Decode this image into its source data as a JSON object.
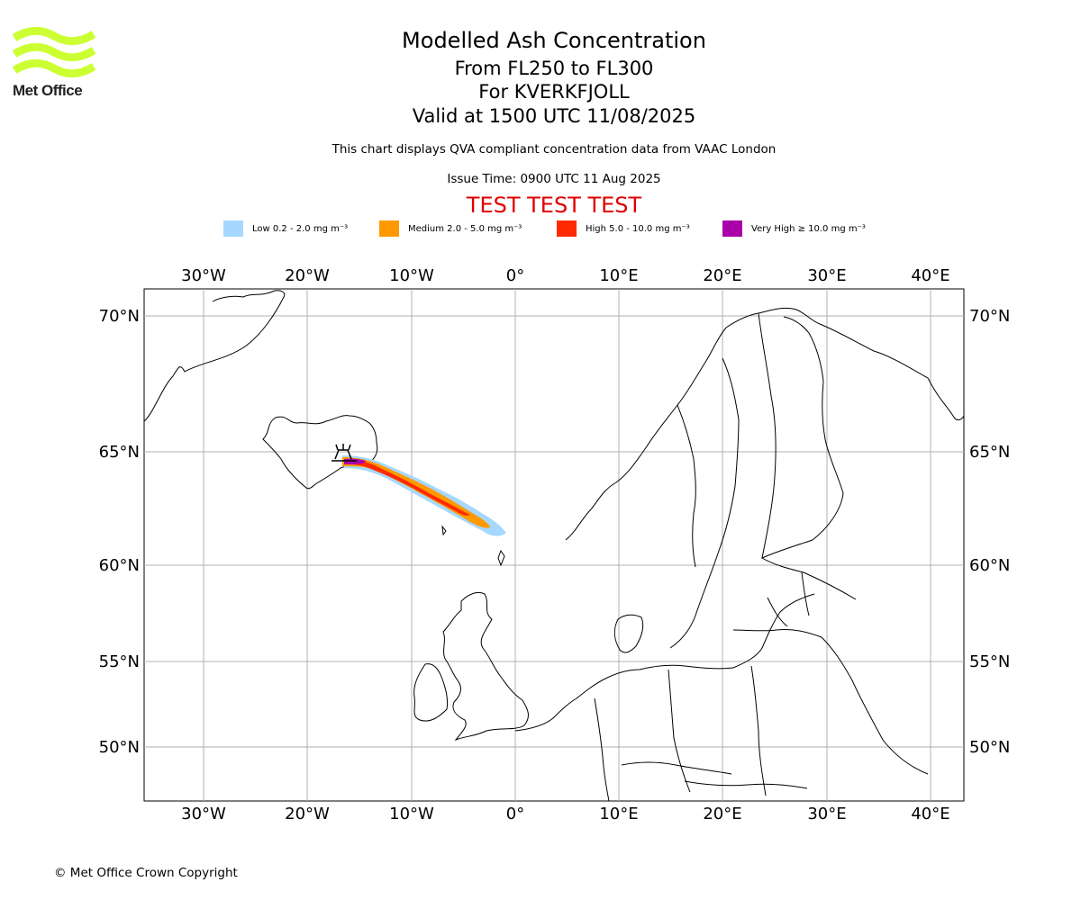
{
  "logo": {
    "text": "Met Office",
    "color": "#ccff33"
  },
  "title": {
    "main": "Modelled Ash Concentration",
    "levels": "From FL250 to FL300",
    "volcano": "For KVERKFJOLL",
    "valid": "Valid at 1500 UTC 11/08/2025"
  },
  "subtitle": "This chart displays QVA compliant concentration data from VAAC London",
  "issue_time": "Issue Time: 0900 UTC 11 Aug 2025",
  "test_banner": "TEST TEST TEST",
  "legend": [
    {
      "label": "Low 0.2 - 2.0 mg m⁻³",
      "color": "#a6d8ff"
    },
    {
      "label": "Medium 2.0 - 5.0 mg m⁻³",
      "color": "#ff9900"
    },
    {
      "label": "High 5.0 - 10.0 mg m⁻³",
      "color": "#ff2a00"
    },
    {
      "label": "Very High  ≥  10.0 mg m⁻³",
      "color": "#aa00aa"
    }
  ],
  "map": {
    "lon_labels": [
      "30°W",
      "20°W",
      "10°W",
      "0°",
      "10°E",
      "20°E",
      "30°E",
      "40°E"
    ],
    "lat_labels": [
      "70°N",
      "65°N",
      "60°N",
      "55°N",
      "50°N"
    ],
    "colors": {
      "grid": "#b0b0b0",
      "coast": "#000000",
      "test": "#e00000"
    },
    "volcano_marker": "volcano-icon",
    "plume_levels": [
      "Low",
      "Medium",
      "High",
      "Very High"
    ]
  },
  "copyright": "© Met Office Crown Copyright"
}
